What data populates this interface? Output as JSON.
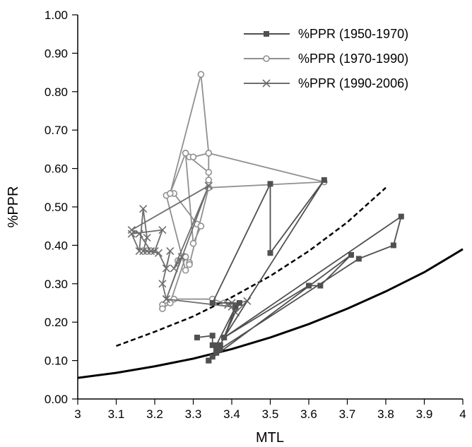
{
  "chart_data": {
    "type": "line",
    "xlabel": "MTL",
    "ylabel": "%PPR",
    "xlim": [
      3,
      4
    ],
    "ylim": [
      0,
      1
    ],
    "xticks": [
      "3",
      "3.1",
      "3.2",
      "3.3",
      "3.4",
      "3.5",
      "3.6",
      "3.7",
      "3.8",
      "3.9",
      "4"
    ],
    "yticks": [
      "0.00",
      "0.10",
      "0.20",
      "0.30",
      "0.40",
      "0.50",
      "0.60",
      "0.70",
      "0.80",
      "0.90",
      "1.00"
    ],
    "grid": false,
    "legend_position": "top-right",
    "series": [
      {
        "name": "%PPR (1950-1970)",
        "marker": "square",
        "color": "#505050",
        "x": [
          3.31,
          3.35,
          3.35,
          3.36,
          3.37,
          3.36,
          3.35,
          3.34,
          3.36,
          3.37,
          3.38,
          3.42,
          3.35,
          3.5,
          3.5,
          3.64,
          3.38,
          3.6,
          3.63,
          3.71,
          3.34,
          3.37,
          3.73,
          3.82,
          3.84,
          3.38,
          3.41,
          3.36
        ],
        "y": [
          0.16,
          0.165,
          0.14,
          0.12,
          0.14,
          0.13,
          0.11,
          0.1,
          0.125,
          0.14,
          0.16,
          0.25,
          0.25,
          0.56,
          0.38,
          0.57,
          0.16,
          0.295,
          0.295,
          0.375,
          0.1,
          0.13,
          0.365,
          0.4,
          0.475,
          0.16,
          0.24,
          0.14
        ]
      },
      {
        "name": "%PPR (1970-1990)",
        "marker": "circle",
        "color": "#909090",
        "x": [
          3.38,
          3.35,
          3.25,
          3.22,
          3.22,
          3.24,
          3.28,
          3.29,
          3.28,
          3.23,
          3.25,
          3.31,
          3.32,
          3.3,
          3.28,
          3.29,
          3.34,
          3.34,
          3.34,
          3.32,
          3.24,
          3.28,
          3.3,
          3.34,
          3.64,
          3.34,
          3.29,
          3.28,
          3.26
        ],
        "y": [
          0.25,
          0.26,
          0.26,
          0.245,
          0.235,
          0.25,
          0.37,
          0.355,
          0.335,
          0.53,
          0.535,
          0.455,
          0.45,
          0.405,
          0.64,
          0.63,
          0.59,
          0.57,
          0.64,
          0.845,
          0.535,
          0.64,
          0.63,
          0.64,
          0.565,
          0.55,
          0.35,
          0.37,
          0.36
        ]
      },
      {
        "name": "%PPR (1990-2006)",
        "marker": "x",
        "color": "#6e6e6e",
        "x": [
          3.34,
          3.14,
          3.16,
          3.19,
          3.2,
          3.22,
          3.14,
          3.16,
          3.17,
          3.18,
          3.17,
          3.18,
          3.21,
          3.23,
          3.24,
          3.22,
          3.23,
          3.34,
          3.25,
          3.27,
          3.23,
          3.4,
          3.41,
          3.44,
          3.39,
          3.4
        ],
        "y": [
          0.555,
          0.44,
          0.43,
          0.385,
          0.385,
          0.44,
          0.43,
          0.385,
          0.495,
          0.42,
          0.385,
          0.385,
          0.38,
          0.34,
          0.385,
          0.3,
          0.26,
          0.555,
          0.34,
          0.37,
          0.26,
          0.24,
          0.225,
          0.255,
          0.245,
          0.25
        ]
      }
    ],
    "curves": [
      {
        "style": "solid",
        "color": "#000000",
        "x": [
          3.0,
          3.1,
          3.2,
          3.3,
          3.4,
          3.5,
          3.6,
          3.7,
          3.8,
          3.9,
          4.0
        ],
        "y": [
          0.055,
          0.068,
          0.085,
          0.105,
          0.13,
          0.16,
          0.195,
          0.235,
          0.28,
          0.33,
          0.39
        ]
      },
      {
        "style": "dashed",
        "color": "#000000",
        "x": [
          3.1,
          3.2,
          3.3,
          3.4,
          3.5,
          3.6,
          3.7,
          3.8
        ],
        "y": [
          0.138,
          0.175,
          0.215,
          0.265,
          0.32,
          0.385,
          0.46,
          0.55
        ]
      }
    ]
  }
}
